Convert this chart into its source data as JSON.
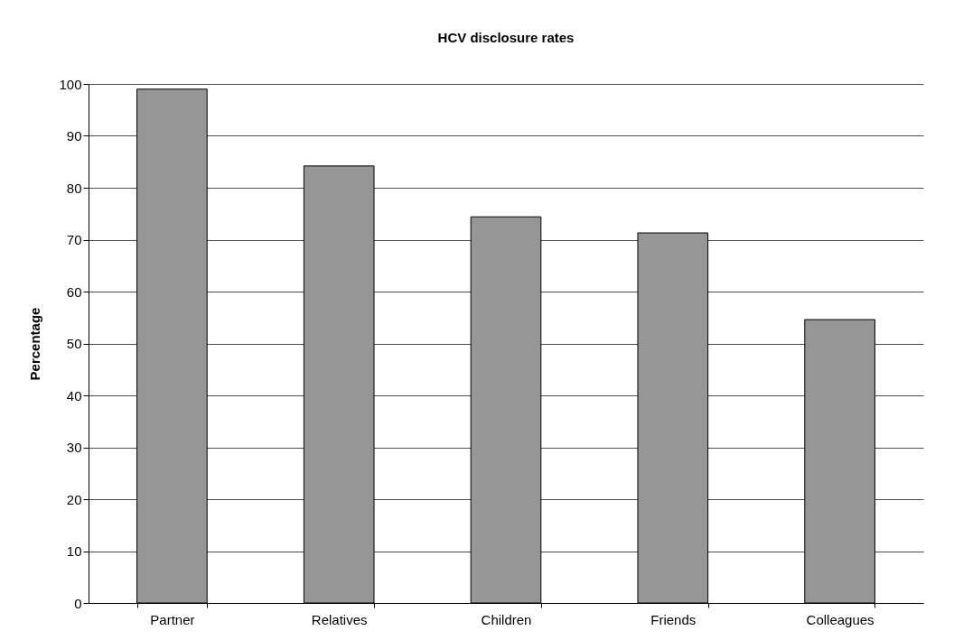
{
  "chart_data": {
    "type": "bar",
    "title": "HCV disclosure rates",
    "ylabel": "Percentage",
    "categories": [
      "Partner",
      "Relatives",
      "Children",
      "Friends",
      "Colleagues"
    ],
    "values": [
      99,
      84.2,
      74.4,
      71.3,
      54.6
    ],
    "color": "#969696",
    "ylim": [
      0,
      100
    ],
    "yticks": [
      0,
      10,
      20,
      30,
      40,
      50,
      60,
      70,
      80,
      90,
      100
    ],
    "grid": "y"
  }
}
